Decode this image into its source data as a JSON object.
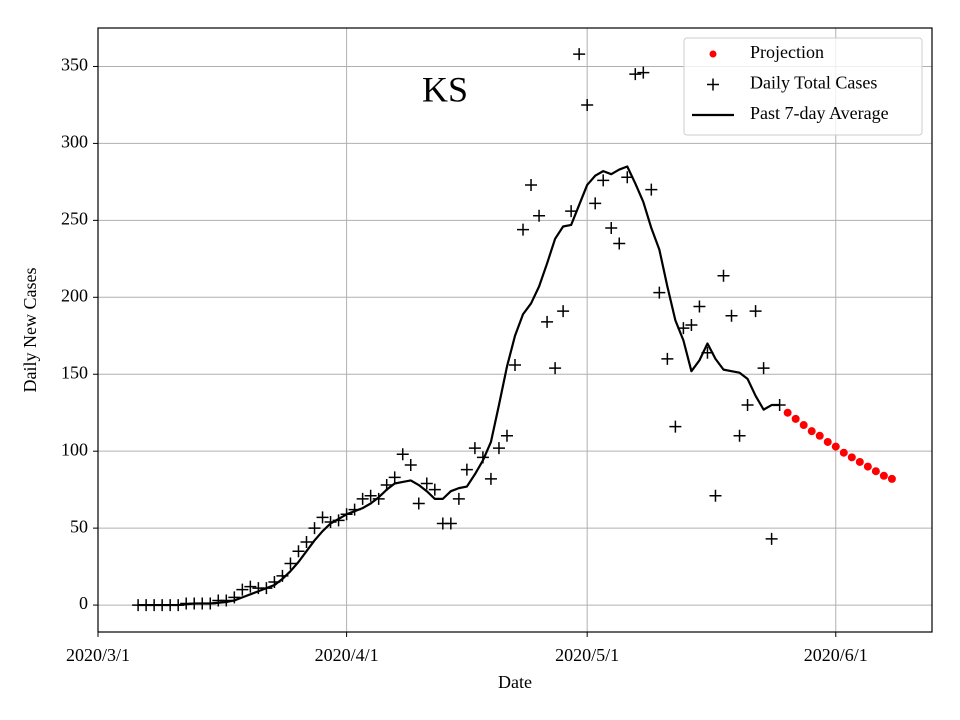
{
  "chart_data": {
    "type": "line",
    "title": "KS",
    "xlabel": "Date",
    "ylabel": "Daily New Cases",
    "xlim": [
      "2020/3/1",
      "2020/6/13"
    ],
    "xticks": [
      "2020/3/1",
      "2020/4/1",
      "2020/5/1",
      "2020/6/1"
    ],
    "ylim": [
      -17.5,
      375
    ],
    "yticks": [
      0,
      50,
      100,
      150,
      200,
      250,
      300,
      350
    ],
    "grid": true,
    "legend": "upper right",
    "series": [
      {
        "name": "Projection",
        "kind": "dots",
        "color": "#ff0000",
        "x": [
          "2020/5/26",
          "2020/5/27",
          "2020/5/28",
          "2020/5/29",
          "2020/5/30",
          "2020/5/31",
          "2020/6/1",
          "2020/6/2",
          "2020/6/3",
          "2020/6/4",
          "2020/6/5",
          "2020/6/6",
          "2020/6/7",
          "2020/6/8"
        ],
        "values": [
          125,
          121,
          117,
          113,
          110,
          106,
          103,
          99,
          96,
          93,
          90,
          87,
          84,
          82
        ]
      },
      {
        "name": "Daily Total Cases",
        "kind": "crosses",
        "color": "#000000",
        "x": [
          "2020/3/6",
          "2020/3/7",
          "2020/3/8",
          "2020/3/9",
          "2020/3/10",
          "2020/3/11",
          "2020/3/12",
          "2020/3/13",
          "2020/3/14",
          "2020/3/15",
          "2020/3/16",
          "2020/3/17",
          "2020/3/18",
          "2020/3/19",
          "2020/3/20",
          "2020/3/21",
          "2020/3/22",
          "2020/3/23",
          "2020/3/24",
          "2020/3/25",
          "2020/3/26",
          "2020/3/27",
          "2020/3/28",
          "2020/3/29",
          "2020/3/30",
          "2020/3/31",
          "2020/4/1",
          "2020/4/2",
          "2020/4/3",
          "2020/4/4",
          "2020/4/5",
          "2020/4/6",
          "2020/4/7",
          "2020/4/8",
          "2020/4/9",
          "2020/4/10",
          "2020/4/11",
          "2020/4/12",
          "2020/4/13",
          "2020/4/14",
          "2020/4/15",
          "2020/4/16",
          "2020/4/17",
          "2020/4/18",
          "2020/4/19",
          "2020/4/20",
          "2020/4/21",
          "2020/4/22",
          "2020/4/23",
          "2020/4/24",
          "2020/4/25",
          "2020/4/26",
          "2020/4/27",
          "2020/4/28",
          "2020/4/29",
          "2020/4/30",
          "2020/5/1",
          "2020/5/2",
          "2020/5/3",
          "2020/5/4",
          "2020/5/5",
          "2020/5/6",
          "2020/5/7",
          "2020/5/8",
          "2020/5/9",
          "2020/5/10",
          "2020/5/11",
          "2020/5/12",
          "2020/5/13",
          "2020/5/14",
          "2020/5/15",
          "2020/5/16",
          "2020/5/17",
          "2020/5/18",
          "2020/5/19",
          "2020/5/20",
          "2020/5/21",
          "2020/5/22",
          "2020/5/23",
          "2020/5/24",
          "2020/5/25"
        ],
        "values": [
          0,
          0,
          0,
          0,
          0,
          0,
          1,
          1,
          1,
          1,
          3,
          3,
          5,
          10,
          12,
          11,
          11,
          15,
          19,
          27,
          35,
          41,
          50,
          57,
          54,
          55,
          59,
          62,
          69,
          71,
          69,
          78,
          83,
          98,
          91,
          66,
          79,
          75,
          53,
          53,
          69,
          88,
          102,
          96,
          82,
          102,
          110,
          156,
          244,
          273,
          253,
          184,
          154,
          191,
          256,
          358,
          325,
          261,
          276,
          245,
          235,
          278,
          345,
          346,
          270,
          203,
          160,
          116,
          180,
          182,
          194,
          164,
          71,
          214,
          188,
          110,
          130,
          191,
          154,
          43,
          130
        ]
      },
      {
        "name": "Past 7-day Average",
        "kind": "line",
        "color": "#000000",
        "x": [
          "2020/3/6",
          "2020/3/7",
          "2020/3/8",
          "2020/3/9",
          "2020/3/10",
          "2020/3/11",
          "2020/3/12",
          "2020/3/13",
          "2020/3/14",
          "2020/3/15",
          "2020/3/16",
          "2020/3/17",
          "2020/3/18",
          "2020/3/19",
          "2020/3/20",
          "2020/3/21",
          "2020/3/22",
          "2020/3/23",
          "2020/3/24",
          "2020/3/25",
          "2020/3/26",
          "2020/3/27",
          "2020/3/28",
          "2020/3/29",
          "2020/3/30",
          "2020/3/31",
          "2020/4/1",
          "2020/4/2",
          "2020/4/3",
          "2020/4/4",
          "2020/4/5",
          "2020/4/6",
          "2020/4/7",
          "2020/4/8",
          "2020/4/9",
          "2020/4/10",
          "2020/4/11",
          "2020/4/12",
          "2020/4/13",
          "2020/4/14",
          "2020/4/15",
          "2020/4/16",
          "2020/4/17",
          "2020/4/18",
          "2020/4/19",
          "2020/4/20",
          "2020/4/21",
          "2020/4/22",
          "2020/4/23",
          "2020/4/24",
          "2020/4/25",
          "2020/4/26",
          "2020/4/27",
          "2020/4/28",
          "2020/4/29",
          "2020/4/30",
          "2020/5/1",
          "2020/5/2",
          "2020/5/3",
          "2020/5/4",
          "2020/5/5",
          "2020/5/6",
          "2020/5/7",
          "2020/5/8",
          "2020/5/9",
          "2020/5/10",
          "2020/5/11",
          "2020/5/12",
          "2020/5/13",
          "2020/5/14",
          "2020/5/15",
          "2020/5/16",
          "2020/5/17",
          "2020/5/18",
          "2020/5/19",
          "2020/5/20",
          "2020/5/21",
          "2020/5/22",
          "2020/5/23",
          "2020/5/24",
          "2020/5/25"
        ],
        "values": [
          0,
          0,
          0,
          0,
          0,
          0,
          0.5,
          1,
          1,
          1,
          1.5,
          2,
          3,
          5,
          7,
          9,
          11,
          13,
          17,
          22,
          28,
          35,
          42,
          48,
          53,
          56,
          59,
          61,
          63,
          66,
          70,
          75,
          79,
          80,
          81,
          78,
          74,
          69,
          69,
          74,
          76,
          77,
          85,
          94,
          106,
          130,
          155,
          175,
          189,
          196,
          207,
          222,
          238,
          246,
          247,
          260,
          273,
          279,
          282,
          280,
          283,
          285,
          274,
          262,
          245,
          231,
          207,
          185,
          172,
          152,
          159,
          170,
          160,
          153,
          152,
          151,
          147,
          136,
          127,
          130,
          130
        ]
      }
    ]
  }
}
